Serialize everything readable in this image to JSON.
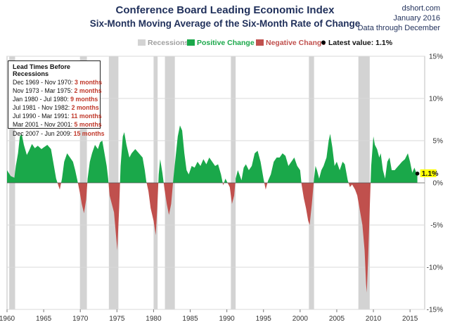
{
  "header": {
    "title": "Conference Board Leading Economic Index",
    "subtitle": "Six-Month  Moving Average of the Six-Month  Rate of Change",
    "source": "dshort.com",
    "date": "January 2016",
    "note": "Data through December"
  },
  "legend": {
    "recessions": "Recessions",
    "positive": "Positive Change",
    "negative": "Negative Change",
    "latest": "Latest value: 1.1%"
  },
  "lead_times": {
    "heading": "Lead Times Before Recessions",
    "rows": [
      {
        "period": "Dec 1969 - Nov 1970:",
        "lead": "3 months"
      },
      {
        "period": "Nov 1973 - Mar 1975:",
        "lead": "2 months"
      },
      {
        "period": "Jan 1980 - Jul 1980:",
        "lead": "9 months"
      },
      {
        "period": "Jul 1981 - Nov 1982:",
        "lead": "2 months"
      },
      {
        "period": "Jul 1990 - Mar 1991:",
        "lead": "11 months"
      },
      {
        "period": "Mar 2001 - Nov 2001:",
        "lead": "5 months"
      },
      {
        "period": "Dec 2007 - Jun 2009:",
        "lead": "15 months"
      }
    ]
  },
  "latest_label": "1.1%",
  "colors": {
    "positive": "#1aa84a",
    "negative": "#c0504d",
    "recession": "#d3d3d3",
    "title": "#1f2f5a",
    "latest_label_bg": "#ffff00"
  },
  "chart_data": {
    "type": "area",
    "xlim": [
      1960.0,
      2017.0
    ],
    "ylim": [
      -15,
      15
    ],
    "x_ticks": [
      1960,
      1965,
      1970,
      1975,
      1980,
      1985,
      1990,
      1995,
      2000,
      2005,
      2010,
      2015
    ],
    "y_ticks": [
      15,
      10,
      5,
      0,
      -5,
      -10,
      -15
    ],
    "y_tick_labels": [
      "15%",
      "10%",
      "5%",
      "0%",
      "-5%",
      "-10%",
      "-15%"
    ],
    "recessions": [
      [
        1960.3,
        1961.1
      ],
      [
        1969.95,
        1970.9
      ],
      [
        1973.9,
        1975.2
      ],
      [
        1980.0,
        1980.55
      ],
      [
        1981.55,
        1982.9
      ],
      [
        1990.55,
        1991.2
      ],
      [
        2001.2,
        2001.9
      ],
      [
        2007.95,
        2009.5
      ]
    ],
    "latest_value": 1.1,
    "series": [
      {
        "name": "Six-month moving average of six-month rate of change",
        "points": [
          [
            1960.0,
            1.5
          ],
          [
            1960.5,
            0.8
          ],
          [
            1961.0,
            0.6
          ],
          [
            1961.2,
            2.0
          ],
          [
            1961.5,
            3.5
          ],
          [
            1961.75,
            5.5
          ],
          [
            1962.0,
            5.8
          ],
          [
            1962.3,
            4.5
          ],
          [
            1962.7,
            3.3
          ],
          [
            1963.0,
            3.8
          ],
          [
            1963.4,
            4.6
          ],
          [
            1963.8,
            4.1
          ],
          [
            1964.2,
            4.4
          ],
          [
            1964.7,
            4.0
          ],
          [
            1965.0,
            4.2
          ],
          [
            1965.5,
            4.5
          ],
          [
            1966.0,
            4.0
          ],
          [
            1966.3,
            2.5
          ],
          [
            1966.7,
            0.5
          ],
          [
            1967.0,
            -0.3
          ],
          [
            1967.2,
            -0.8
          ],
          [
            1967.5,
            0.5
          ],
          [
            1967.8,
            2.5
          ],
          [
            1968.2,
            3.5
          ],
          [
            1968.6,
            3.0
          ],
          [
            1969.0,
            2.5
          ],
          [
            1969.3,
            1.5
          ],
          [
            1969.6,
            0.3
          ],
          [
            1969.9,
            -1.0
          ],
          [
            1970.2,
            -2.5
          ],
          [
            1970.5,
            -3.6
          ],
          [
            1970.8,
            -2.0
          ],
          [
            1971.0,
            0.5
          ],
          [
            1971.3,
            2.5
          ],
          [
            1971.6,
            3.5
          ],
          [
            1972.0,
            4.5
          ],
          [
            1972.4,
            4.0
          ],
          [
            1972.7,
            4.8
          ],
          [
            1973.0,
            5.0
          ],
          [
            1973.3,
            3.5
          ],
          [
            1973.6,
            2.0
          ],
          [
            1973.8,
            0.5
          ],
          [
            1974.0,
            -1.5
          ],
          [
            1974.3,
            -2.5
          ],
          [
            1974.6,
            -3.5
          ],
          [
            1974.9,
            -6.5
          ],
          [
            1975.05,
            -8.0
          ],
          [
            1975.3,
            -3.0
          ],
          [
            1975.5,
            2.0
          ],
          [
            1975.8,
            5.5
          ],
          [
            1976.0,
            6.0
          ],
          [
            1976.3,
            4.5
          ],
          [
            1976.7,
            3.0
          ],
          [
            1977.0,
            3.5
          ],
          [
            1977.5,
            4.0
          ],
          [
            1978.0,
            3.5
          ],
          [
            1978.5,
            3.0
          ],
          [
            1978.8,
            1.5
          ],
          [
            1979.0,
            0.2
          ],
          [
            1979.3,
            -1.0
          ],
          [
            1979.6,
            -3.0
          ],
          [
            1980.0,
            -4.5
          ],
          [
            1980.3,
            -6.2
          ],
          [
            1980.5,
            -3.0
          ],
          [
            1980.7,
            1.0
          ],
          [
            1980.9,
            2.8
          ],
          [
            1981.2,
            1.2
          ],
          [
            1981.5,
            -0.8
          ],
          [
            1981.8,
            -2.5
          ],
          [
            1982.1,
            -3.8
          ],
          [
            1982.4,
            -2.5
          ],
          [
            1982.7,
            0.5
          ],
          [
            1983.0,
            3.0
          ],
          [
            1983.3,
            5.5
          ],
          [
            1983.6,
            6.8
          ],
          [
            1983.9,
            6.2
          ],
          [
            1984.2,
            3.5
          ],
          [
            1984.5,
            1.5
          ],
          [
            1984.8,
            1.0
          ],
          [
            1985.2,
            2.0
          ],
          [
            1985.6,
            1.8
          ],
          [
            1986.0,
            2.5
          ],
          [
            1986.4,
            2.0
          ],
          [
            1986.8,
            2.8
          ],
          [
            1987.2,
            2.2
          ],
          [
            1987.6,
            3.0
          ],
          [
            1988.0,
            2.5
          ],
          [
            1988.4,
            2.0
          ],
          [
            1988.8,
            2.2
          ],
          [
            1989.2,
            1.0
          ],
          [
            1989.5,
            -0.3
          ],
          [
            1989.8,
            0.5
          ],
          [
            1990.1,
            0.0
          ],
          [
            1990.4,
            -0.5
          ],
          [
            1990.7,
            -2.5
          ],
          [
            1991.0,
            -1.5
          ],
          [
            1991.2,
            0.5
          ],
          [
            1991.5,
            1.5
          ],
          [
            1991.8,
            0.8
          ],
          [
            1992.0,
            0.3
          ],
          [
            1992.3,
            1.8
          ],
          [
            1992.6,
            2.2
          ],
          [
            1993.0,
            1.5
          ],
          [
            1993.4,
            2.0
          ],
          [
            1993.8,
            3.5
          ],
          [
            1994.2,
            3.8
          ],
          [
            1994.6,
            2.5
          ],
          [
            1995.0,
            0.5
          ],
          [
            1995.3,
            -0.8
          ],
          [
            1995.6,
            0.2
          ],
          [
            1996.0,
            1.0
          ],
          [
            1996.4,
            2.5
          ],
          [
            1996.8,
            3.0
          ],
          [
            1997.2,
            3.0
          ],
          [
            1997.6,
            3.5
          ],
          [
            1998.0,
            3.2
          ],
          [
            1998.4,
            2.0
          ],
          [
            1998.8,
            2.5
          ],
          [
            1999.2,
            3.0
          ],
          [
            1999.6,
            2.0
          ],
          [
            2000.0,
            1.5
          ],
          [
            2000.2,
            -0.2
          ],
          [
            2000.5,
            -1.8
          ],
          [
            2000.8,
            -3.0
          ],
          [
            2001.1,
            -4.5
          ],
          [
            2001.3,
            -5.0
          ],
          [
            2001.6,
            -2.5
          ],
          [
            2001.9,
            0.5
          ],
          [
            2002.1,
            2.0
          ],
          [
            2002.3,
            1.5
          ],
          [
            2002.6,
            0.5
          ],
          [
            2002.9,
            1.5
          ],
          [
            2003.2,
            2.0
          ],
          [
            2003.6,
            3.0
          ],
          [
            2003.9,
            5.0
          ],
          [
            2004.1,
            5.8
          ],
          [
            2004.4,
            4.2
          ],
          [
            2004.7,
            2.0
          ],
          [
            2005.0,
            2.5
          ],
          [
            2005.4,
            1.5
          ],
          [
            2005.8,
            2.5
          ],
          [
            2006.1,
            2.2
          ],
          [
            2006.5,
            0.3
          ],
          [
            2006.8,
            -0.5
          ],
          [
            2007.1,
            -0.2
          ],
          [
            2007.5,
            -0.8
          ],
          [
            2007.8,
            -1.5
          ],
          [
            2008.0,
            -2.5
          ],
          [
            2008.2,
            -3.5
          ],
          [
            2008.5,
            -5.0
          ],
          [
            2008.8,
            -8.0
          ],
          [
            2009.0,
            -12.0
          ],
          [
            2009.1,
            -13.0
          ],
          [
            2009.3,
            -8.5
          ],
          [
            2009.5,
            -3.0
          ],
          [
            2009.7,
            2.0
          ],
          [
            2010.0,
            5.5
          ],
          [
            2010.2,
            4.5
          ],
          [
            2010.5,
            4.0
          ],
          [
            2010.8,
            3.0
          ],
          [
            2011.0,
            3.5
          ],
          [
            2011.3,
            1.5
          ],
          [
            2011.6,
            0.5
          ],
          [
            2011.9,
            2.5
          ],
          [
            2012.2,
            3.0
          ],
          [
            2012.5,
            1.5
          ],
          [
            2012.9,
            1.5
          ],
          [
            2013.2,
            1.8
          ],
          [
            2013.6,
            2.2
          ],
          [
            2013.9,
            2.5
          ],
          [
            2014.3,
            2.8
          ],
          [
            2014.7,
            3.5
          ],
          [
            2015.0,
            2.5
          ],
          [
            2015.3,
            1.2
          ],
          [
            2015.6,
            1.8
          ],
          [
            2015.8,
            1.3
          ],
          [
            2016.0,
            1.1
          ]
        ]
      }
    ]
  }
}
